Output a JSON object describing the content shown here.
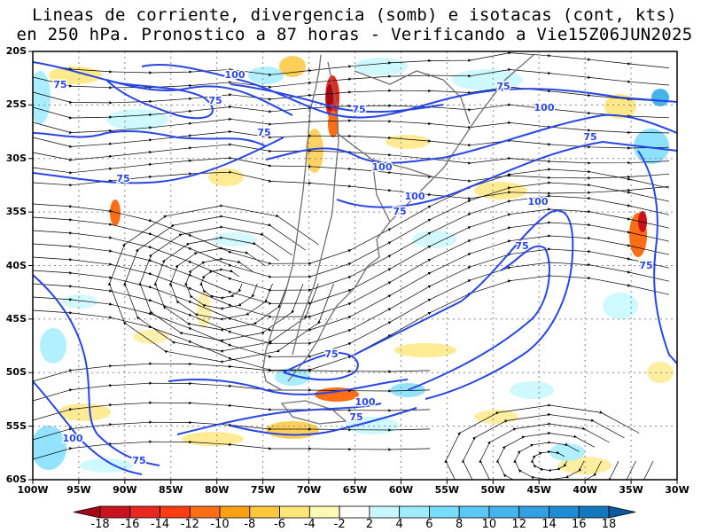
{
  "title": {
    "line1": "Lineas de corriente, divergencia (somb) e isotacas (cont, kts)",
    "line2": "en 250 hPa. Pronostico a 87 horas - Verificando a Vie15Z06JUN2025"
  },
  "axes": {
    "lat_labels": [
      "20S",
      "25S",
      "30S",
      "35S",
      "40S",
      "45S",
      "50S",
      "55S",
      "60S"
    ],
    "lon_labels": [
      "100W",
      "95W",
      "90W",
      "85W",
      "80W",
      "75W",
      "70W",
      "65W",
      "60W",
      "55W",
      "50W",
      "45W",
      "40W",
      "35W",
      "30W"
    ]
  },
  "isotach_labels": [
    {
      "text": "75"
    },
    {
      "text": "100"
    },
    {
      "text": "75"
    },
    {
      "text": "75"
    },
    {
      "text": "75"
    },
    {
      "text": "75"
    },
    {
      "text": "100"
    },
    {
      "text": "75"
    },
    {
      "text": "100"
    },
    {
      "text": "75"
    },
    {
      "text": "100"
    },
    {
      "text": "75"
    },
    {
      "text": "100"
    },
    {
      "text": "75"
    },
    {
      "text": "75"
    },
    {
      "text": "75"
    },
    {
      "text": "100"
    },
    {
      "text": "75"
    },
    {
      "text": "100"
    },
    {
      "text": "75"
    }
  ],
  "colorbar": {
    "labels": [
      "-18",
      "-16",
      "-14",
      "-12",
      "-10",
      "-8",
      "-6",
      "-4",
      "-2",
      "2",
      "4",
      "6",
      "8",
      "10",
      "12",
      "14",
      "16",
      "18"
    ],
    "colors": [
      "#a50a14",
      "#c8141e",
      "#e6281e",
      "#ff3c14",
      "#ff6e14",
      "#ffa014",
      "#ffc83c",
      "#ffe678",
      "#fff8b4",
      "#ffffff",
      "#c8f8ff",
      "#a0ecff",
      "#78dcff",
      "#5ac8f5",
      "#46b4ec",
      "#32a0e1",
      "#1e8cd2",
      "#1478be",
      "#0a5aa0"
    ]
  },
  "colors": {
    "isotach": "#2846e6",
    "streamline": "#000000",
    "coast": "#707070",
    "grid": "#888888"
  }
}
